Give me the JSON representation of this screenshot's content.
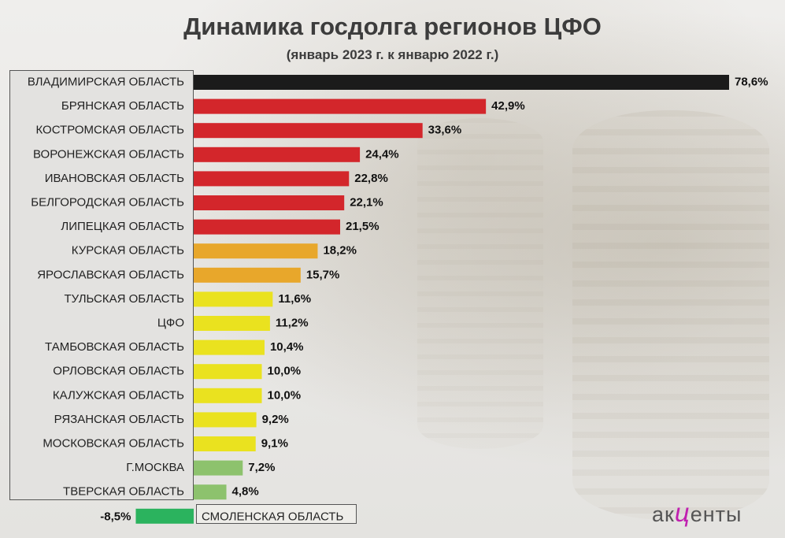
{
  "header": {
    "title": "Динамика госдолга регионов ЦФО",
    "subtitle": "(январь 2023 г. к январю 2022 г.)"
  },
  "logo": {
    "part1": "ак",
    "part2": "ц",
    "part3": "енты"
  },
  "colors": {
    "black": "#1b1b1b",
    "red": "#d3262b",
    "orange": "#e8a72b",
    "yellow": "#eae21f",
    "green_light": "#8dc26d",
    "green": "#2bb35e"
  },
  "chart_data": {
    "type": "bar",
    "orientation": "horizontal",
    "title": "Динамика госдолга регионов ЦФО",
    "subtitle": "(январь 2023 г. к январю 2022 г.)",
    "categories": [
      "ВЛАДИМИРСКАЯ ОБЛАСТЬ",
      "БРЯНСКАЯ ОБЛАСТЬ",
      "КОСТРОМСКАЯ ОБЛАСТЬ",
      "ВОРОНЕЖСКАЯ ОБЛАСТЬ",
      "ИВАНОВСКАЯ ОБЛАСТЬ",
      "БЕЛГОРОДСКАЯ ОБЛАСТЬ",
      "ЛИПЕЦКАЯ ОБЛАСТЬ",
      "КУРСКАЯ ОБЛАСТЬ",
      "ЯРОСЛАВСКАЯ ОБЛАСТЬ",
      "ТУЛЬСКАЯ ОБЛАСТЬ",
      "ЦФО",
      "ТАМБОВСКАЯ ОБЛАСТЬ",
      "ОРЛОВСКАЯ ОБЛАСТЬ",
      "КАЛУЖСКАЯ ОБЛАСТЬ",
      "РЯЗАНСКАЯ ОБЛАСТЬ",
      "МОСКОВСКАЯ ОБЛАСТЬ",
      "Г.МОСКВА",
      "ТВЕРСКАЯ ОБЛАСТЬ",
      "СМОЛЕНСКАЯ ОБЛАСТЬ"
    ],
    "values": [
      78.6,
      42.9,
      33.6,
      24.4,
      22.8,
      22.1,
      21.5,
      18.2,
      15.7,
      11.6,
      11.2,
      10.4,
      10.0,
      10.0,
      9.2,
      9.1,
      7.2,
      4.8,
      -8.5
    ],
    "value_labels": [
      "78,6%",
      "42,9%",
      "33,6%",
      "24,4%",
      "22,8%",
      "22,1%",
      "21,5%",
      "18,2%",
      "15,7%",
      "11,6%",
      "11,2%",
      "10,4%",
      "10,0%",
      "10,0%",
      "9,2%",
      "9,1%",
      "7,2%",
      "4,8%",
      "-8,5%"
    ],
    "bar_colors": [
      "black",
      "red",
      "red",
      "red",
      "red",
      "red",
      "red",
      "orange",
      "orange",
      "yellow",
      "yellow",
      "yellow",
      "yellow",
      "yellow",
      "yellow",
      "yellow",
      "green_light",
      "green_light",
      "green"
    ],
    "xlim": [
      -8.5,
      78.6
    ],
    "grid": false,
    "legend": false
  }
}
